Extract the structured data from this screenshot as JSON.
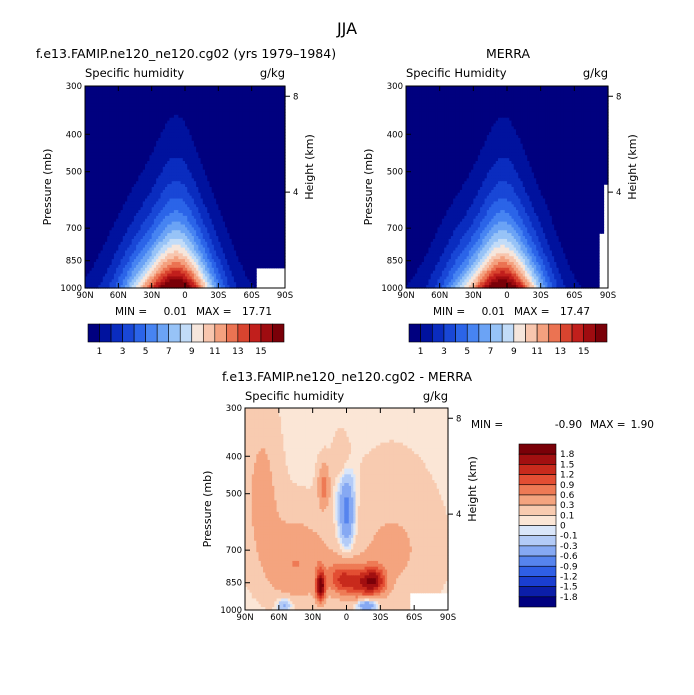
{
  "figure": {
    "title": "JJA"
  },
  "chart_data": [
    {
      "type": "heatmap",
      "id": "model",
      "title": "f.e13.FAMIP.ne120_ne120.cg02 (yrs 1979–1984)",
      "subtitle_left": "Specific humidity",
      "subtitle_right": "g/kg",
      "xlabel": "",
      "ylabel": "Pressure (mb)",
      "ylabel_right": "Height (km)",
      "x_ticks": [
        "90N",
        "60N",
        "30N",
        "0",
        "30S",
        "60S",
        "90S"
      ],
      "x_tick_values": [
        90,
        60,
        30,
        0,
        -30,
        -60,
        -90
      ],
      "y_ticks": [
        "300",
        "400",
        "500",
        "700",
        "850",
        "1000"
      ],
      "y_tick_values": [
        300,
        400,
        500,
        700,
        850,
        1000
      ],
      "y_scale": "log",
      "ylim": [
        1000,
        300
      ],
      "xlim": [
        90,
        -90
      ],
      "right_ticks": [
        "8",
        "4"
      ],
      "right_tick_values": [
        8,
        4
      ],
      "min_label": "MIN =",
      "min_value": "0.01",
      "max_label": "MAX =",
      "max_value": "17.71",
      "min": 0.01,
      "max": 17.71,
      "peak": {
        "lat": 8,
        "value": 17.71
      },
      "colorbar_labels": [
        "1",
        "3",
        "5",
        "7",
        "9",
        "11",
        "13",
        "15"
      ],
      "colorbar_values": [
        1,
        3,
        5,
        7,
        9,
        11,
        13,
        15
      ],
      "colorbar_levels": [
        1,
        2,
        3,
        4,
        5,
        6,
        7,
        8,
        9,
        10,
        11,
        12,
        13,
        14,
        15,
        16
      ]
    },
    {
      "type": "heatmap",
      "id": "merra",
      "title": "MERRA",
      "subtitle_left": "Specific Humidity",
      "subtitle_right": "g/kg",
      "xlabel": "",
      "ylabel": "Pressure (mb)",
      "ylabel_right": "Height (km)",
      "x_ticks": [
        "90N",
        "60N",
        "30N",
        "0",
        "30S",
        "60S",
        "90S"
      ],
      "x_tick_values": [
        90,
        60,
        30,
        0,
        -30,
        -60,
        -90
      ],
      "y_ticks": [
        "300",
        "400",
        "500",
        "700",
        "850",
        "1000"
      ],
      "y_tick_values": [
        300,
        400,
        500,
        700,
        850,
        1000
      ],
      "y_scale": "log",
      "ylim": [
        1000,
        300
      ],
      "xlim": [
        90,
        -90
      ],
      "right_ticks": [
        "8",
        "4"
      ],
      "right_tick_values": [
        8,
        4
      ],
      "min_label": "MIN =",
      "min_value": "0.01",
      "max_label": "MAX =",
      "max_value": "17.47",
      "min": 0.01,
      "max": 17.47,
      "peak": {
        "lat": 3,
        "value": 17.47
      },
      "colorbar_labels": [
        "1",
        "3",
        "5",
        "7",
        "9",
        "11",
        "13",
        "15"
      ],
      "colorbar_values": [
        1,
        3,
        5,
        7,
        9,
        11,
        13,
        15
      ],
      "colorbar_levels": [
        1,
        2,
        3,
        4,
        5,
        6,
        7,
        8,
        9,
        10,
        11,
        12,
        13,
        14,
        15,
        16
      ]
    },
    {
      "type": "heatmap",
      "id": "diff",
      "title": "f.e13.FAMIP.ne120_ne120.cg02 - MERRA",
      "subtitle_left": "Specific humidity",
      "subtitle_right": "g/kg",
      "xlabel": "",
      "ylabel": "Pressure (mb)",
      "ylabel_right": "Height (km)",
      "x_ticks": [
        "90N",
        "60N",
        "30N",
        "0",
        "30S",
        "60S",
        "90S"
      ],
      "x_tick_values": [
        90,
        60,
        30,
        0,
        -30,
        -60,
        -90
      ],
      "y_ticks": [
        "300",
        "400",
        "500",
        "700",
        "850",
        "1000"
      ],
      "y_tick_values": [
        300,
        400,
        500,
        700,
        850,
        1000
      ],
      "y_scale": "log",
      "ylim": [
        1000,
        300
      ],
      "xlim": [
        90,
        -90
      ],
      "right_ticks": [
        "8",
        "4"
      ],
      "right_tick_values": [
        8,
        4
      ],
      "min_label": "MIN =",
      "min_value": "-0.90",
      "max_label": "MAX =",
      "max_value": "1.90",
      "min": -0.9,
      "max": 1.9,
      "colorbar_labels": [
        "1.8",
        "1.5",
        "1.2",
        "0.9",
        "0.6",
        "0.3",
        "0.1",
        "0",
        "-0.1",
        "-0.3",
        "-0.6",
        "-0.9",
        "-1.2",
        "-1.5",
        "-1.8"
      ],
      "colorbar_values": [
        1.8,
        1.5,
        1.2,
        0.9,
        0.6,
        0.3,
        0.1,
        0,
        -0.1,
        -0.3,
        -0.6,
        -0.9,
        -1.2,
        -1.5,
        -1.8
      ]
    }
  ],
  "colors": {
    "abs_palette": [
      "#00007f",
      "#00129e",
      "#0a2cbf",
      "#1947d6",
      "#2b64e8",
      "#4784f2",
      "#6ba3f5",
      "#97c3f7",
      "#c2dcf8",
      "#f6e6dc",
      "#f8c6ae",
      "#f4a17f",
      "#eb7352",
      "#d9442f",
      "#c11f1c",
      "#9f0c10",
      "#7a0008"
    ],
    "diff_palette": [
      "#00007f",
      "#0b1ea8",
      "#1a3ed0",
      "#2f5fe6",
      "#5684ee",
      "#86a9f3",
      "#b3cbf7",
      "#d9e6fa",
      "#fbe6d6",
      "#f8cbb0",
      "#f4a47f",
      "#ee7a55",
      "#e34e33",
      "#c82a1c",
      "#a20f10",
      "#7a0008"
    ],
    "missing": "#ffffff"
  }
}
